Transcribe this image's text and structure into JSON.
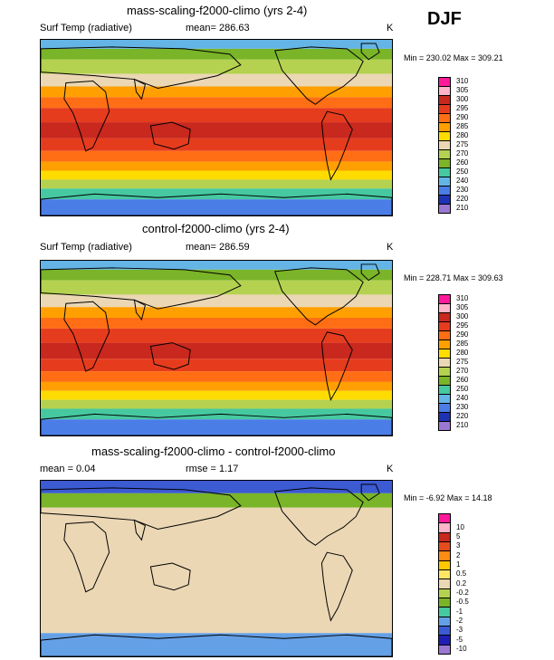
{
  "season": "DJF",
  "panels": [
    {
      "title": "mass-scaling-f2000-climo (yrs 2-4)",
      "left": "Surf Temp (radiative)",
      "mean": "mean= 286.63",
      "unit": "K",
      "minmax": "Min = 230.02 Max = 309.21",
      "levels": [
        "310",
        "305",
        "300",
        "295",
        "290",
        "285",
        "280",
        "275",
        "270",
        "260",
        "250",
        "240",
        "230",
        "220",
        "210"
      ],
      "colors": [
        "#ff1a9c",
        "#ffb4c8",
        "#c8281e",
        "#e63c1e",
        "#ff6e14",
        "#ffa000",
        "#ffdc00",
        "#ebd7b4",
        "#b4d250",
        "#7ab428",
        "#46c8a0",
        "#64b4e6",
        "#4b7de6",
        "#1e32b4",
        "#9a78d2"
      ],
      "scheme": "temp"
    },
    {
      "title": "control-f2000-climo (yrs 2-4)",
      "left": "Surf Temp (radiative)",
      "mean": "mean= 286.59",
      "unit": "K",
      "minmax": "Min = 228.71 Max = 309.63",
      "levels": [
        "310",
        "305",
        "300",
        "295",
        "290",
        "285",
        "280",
        "275",
        "270",
        "260",
        "250",
        "240",
        "230",
        "220",
        "210"
      ],
      "colors": [
        "#ff1a9c",
        "#ffb4c8",
        "#c8281e",
        "#e63c1e",
        "#ff6e14",
        "#ffa000",
        "#ffdc00",
        "#ebd7b4",
        "#b4d250",
        "#7ab428",
        "#46c8a0",
        "#64b4e6",
        "#4b7de6",
        "#1e32b4",
        "#9a78d2"
      ],
      "scheme": "temp"
    },
    {
      "title": "mass-scaling-f2000-climo - control-f2000-climo",
      "left": "mean =   0.04",
      "mean": "rmse =   1.17",
      "unit": "K",
      "minmax": "Min = -6.92 Max = 14.18",
      "levels": [
        "10",
        "5",
        "3",
        "2",
        "1",
        "0.5",
        "0.2",
        "-0.2",
        "-0.5",
        "-1",
        "-2",
        "-3",
        "-5",
        "-10"
      ],
      "colors": [
        "#ff1a9c",
        "#ffb4c8",
        "#c8281e",
        "#e64b1e",
        "#ff8c14",
        "#ffc800",
        "#ffe664",
        "#ebd7b4",
        "#b4d250",
        "#7ab428",
        "#46c8a0",
        "#64a0e6",
        "#3c5ad2",
        "#1e1eb4",
        "#9a78d2"
      ],
      "scheme": "diff"
    }
  ]
}
